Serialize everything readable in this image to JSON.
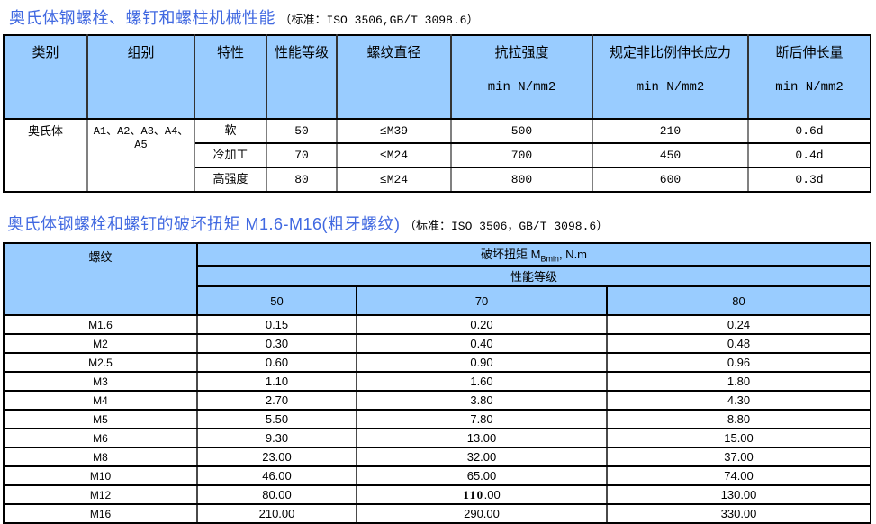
{
  "colors": {
    "header_bg": "#99CCFF",
    "title_blue": "#4169E1",
    "border_dark": "#000000",
    "border_gray": "#808080"
  },
  "section1": {
    "title_main": "奥氏体钢螺栓、螺钉和螺柱机械性能",
    "title_note": "（标准：ISO 3506,GB/T 3098.6）",
    "table": {
      "headers": [
        {
          "label": "类别",
          "unit": ""
        },
        {
          "label": "组别",
          "unit": ""
        },
        {
          "label": "特性",
          "unit": ""
        },
        {
          "label": "性能等级",
          "unit": ""
        },
        {
          "label": "螺纹直径",
          "unit": ""
        },
        {
          "label": "抗拉强度",
          "unit": "min N/mm2"
        },
        {
          "label": "规定非比例伸长应力",
          "unit": "min N/mm2"
        },
        {
          "label": "断后伸长量",
          "unit": "min N/mm2"
        }
      ],
      "category": "奥氏体",
      "group": "A1、A2、A3、A4、A5",
      "rows": [
        {
          "property": "软",
          "grade": "50",
          "diameter": "≤M39",
          "tensile": "500",
          "proof": "210",
          "elongation": "0.6d"
        },
        {
          "property": "冷加工",
          "grade": "70",
          "diameter": "≤M24",
          "tensile": "700",
          "proof": "450",
          "elongation": "0.4d"
        },
        {
          "property": "高强度",
          "grade": "80",
          "diameter": "≤M24",
          "tensile": "800",
          "proof": "600",
          "elongation": "0.3d"
        }
      ]
    }
  },
  "section2": {
    "title_main": "奥氏体钢螺栓和螺钉的破坏扭矩 M1.6-M16(粗牙螺纹)",
    "title_note": "（标准：ISO 3506，GB/T  3098.6）",
    "table": {
      "thread_header": "螺纹",
      "torque_header_prefix": "破坏扭矩 M",
      "torque_header_sub": "Bmin",
      "torque_header_suffix": ", N.m",
      "grade_header": "性能等级",
      "grade_columns": [
        "50",
        "70",
        "80"
      ],
      "rows": [
        {
          "thread": "M1.6",
          "values": [
            "0.15",
            "0.20",
            "0.24"
          ]
        },
        {
          "thread": "M2",
          "values": [
            "0.30",
            "0.40",
            "0.48"
          ]
        },
        {
          "thread": "M2.5",
          "values": [
            "0.60",
            "0.90",
            "0.96"
          ]
        },
        {
          "thread": "M3",
          "values": [
            "1.10",
            "1.60",
            "1.80"
          ]
        },
        {
          "thread": "M4",
          "values": [
            "2.70",
            "3.80",
            "4.30"
          ]
        },
        {
          "thread": "M5",
          "values": [
            "5.50",
            "7.80",
            "8.80"
          ]
        },
        {
          "thread": "M6",
          "values": [
            "9.30",
            "13.00",
            "15.00"
          ]
        },
        {
          "thread": "M8",
          "values": [
            "23.00",
            "32.00",
            "37.00"
          ]
        },
        {
          "thread": "M10",
          "values": [
            "46.00",
            "65.00",
            "74.00"
          ]
        },
        {
          "thread": "M12",
          "values": [
            "80.00",
            "110.00",
            "130.00"
          ]
        },
        {
          "thread": "M16",
          "values": [
            "210.00",
            "290.00",
            "330.00"
          ]
        }
      ],
      "bold_cell": {
        "row_index": 9,
        "col_index": 1,
        "bold_part": "110",
        "rest_part": ".00"
      }
    }
  }
}
